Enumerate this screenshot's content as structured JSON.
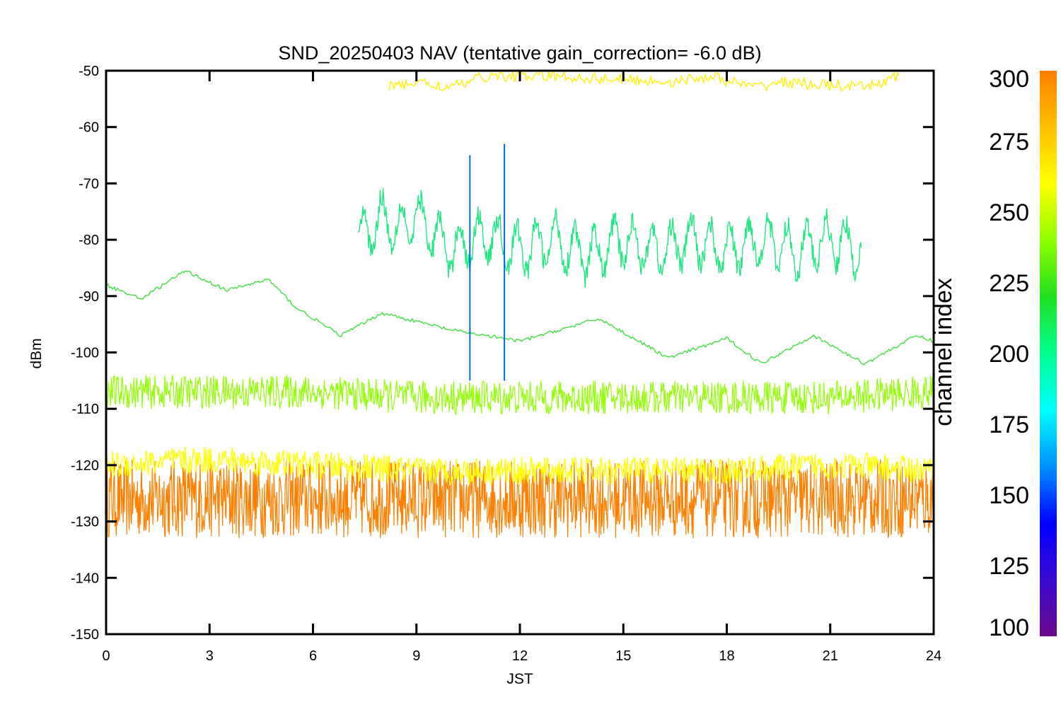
{
  "chart_data": {
    "type": "line",
    "title": "SND_20250403 NAV (tentative gain_correction= -6.0 dB)",
    "xlabel": "JST",
    "ylabel": "dBm",
    "xlim": [
      0,
      24
    ],
    "ylim": [
      -150,
      -50
    ],
    "xticks": [
      0,
      3,
      6,
      9,
      12,
      15,
      18,
      21,
      24
    ],
    "yticks": [
      -50,
      -60,
      -70,
      -80,
      -90,
      -100,
      -110,
      -120,
      -130,
      -140,
      -150
    ],
    "grid": false,
    "colorbar": {
      "title": "channel index",
      "range": [
        100,
        300
      ],
      "ticks": [
        300,
        275,
        250,
        225,
        200,
        175,
        150,
        125,
        100
      ],
      "colors": [
        "#6a0a8a",
        "#3a0ad0",
        "#0000ff",
        "#0090ff",
        "#00ffff",
        "#00ff90",
        "#20e020",
        "#90ff00",
        "#ffff00",
        "#ffc000",
        "#ff8000"
      ]
    },
    "series": [
      {
        "channel_index": 290,
        "color": "#ff8000",
        "x": [
          0,
          3,
          6,
          9,
          12,
          15,
          18,
          21,
          24
        ],
        "y": [
          -126,
          -126,
          -126,
          -126,
          -126,
          -126,
          -126,
          -126,
          -126
        ]
      },
      {
        "channel_index": 255,
        "color": "#90ff00",
        "x": [
          0,
          3,
          6,
          9,
          12,
          15,
          18,
          21,
          24
        ],
        "y": [
          -107,
          -107,
          -107,
          -108,
          -108,
          -108,
          -108,
          -108,
          -107
        ]
      },
      {
        "channel_index": 262,
        "color": "#ffff00",
        "x": [
          0,
          3,
          6,
          9,
          12,
          15,
          18,
          21,
          24
        ],
        "y": [
          -120,
          -119,
          -120,
          -121,
          -121,
          -121,
          -121,
          -120,
          -121
        ]
      },
      {
        "channel_index": 235,
        "color": "#40e040",
        "x": [
          0,
          1,
          2.3,
          3.5,
          4.7,
          5.5,
          6.8,
          8,
          10,
          12,
          14.3,
          16.3,
          18,
          19,
          20.5,
          22,
          23.5,
          24
        ],
        "y": [
          -88,
          -90.5,
          -85.5,
          -89,
          -87,
          -92,
          -97,
          -93,
          -96,
          -98,
          -94,
          -101,
          -97.5,
          -102,
          -97,
          -102,
          -97,
          -98
        ]
      },
      {
        "channel_index": 205,
        "color": "#20e880",
        "x": [
          7.3,
          8,
          8.5,
          9,
          10,
          11,
          12,
          13,
          14,
          15,
          16,
          17,
          18,
          19,
          20,
          21,
          21.9
        ],
        "y": [
          -80,
          -76,
          -78,
          -76,
          -82,
          -79,
          -82,
          -80,
          -83,
          -80,
          -82,
          -80,
          -82,
          -80,
          -82,
          -80,
          -82
        ]
      },
      {
        "channel_index": 270,
        "color": "#ffee00",
        "x": [
          8.2,
          9,
          10,
          11,
          13,
          16.5,
          17.5,
          18.8,
          19.5,
          22,
          23
        ],
        "y": [
          -53,
          -52,
          -53,
          -51,
          -51,
          -52,
          -51,
          -53,
          -52,
          -53,
          -51
        ]
      }
    ],
    "spikes": [
      {
        "x": 10.55,
        "y": -65,
        "color": "#0066ff"
      },
      {
        "x": 11.55,
        "y": -63,
        "color": "#0066ff"
      }
    ]
  }
}
